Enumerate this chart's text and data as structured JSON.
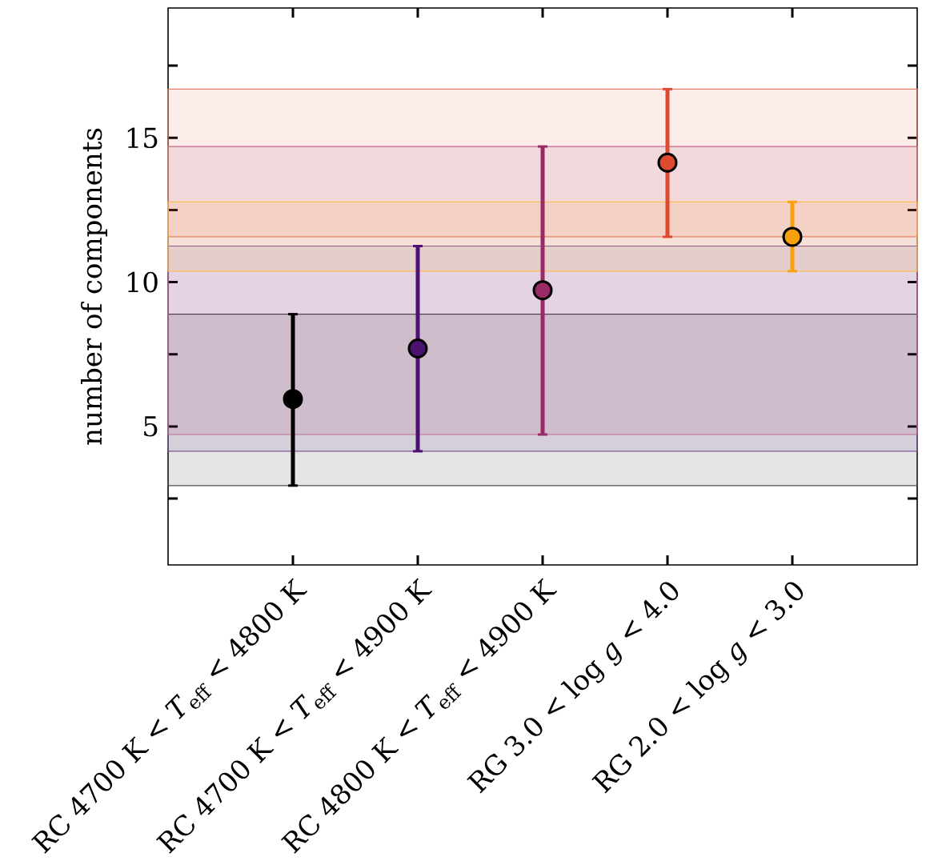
{
  "chart_data": {
    "type": "scatter",
    "ylabel": "number of components",
    "categories": [
      "RC 4700 K < *T*$_{eff}$ < 4800 K",
      "RC 4700 K < *T*$_{eff}$ < 4900 K",
      "RC 4800 K < *T*$_{eff}$ < 4900 K",
      "RG 3.0 < log *g* < 4.0",
      "RG 2.0 < log *g* < 3.0"
    ],
    "values": [
      5.95,
      7.7,
      9.72,
      14.14,
      11.57
    ],
    "colors": [
      "#000000",
      "#4b1272",
      "#992a66",
      "#de4a2f",
      "#f9a10b"
    ],
    "errors": [
      [
        2.95,
        8.89
      ],
      [
        4.14,
        11.25
      ],
      [
        4.72,
        14.7
      ],
      [
        11.57,
        16.69
      ],
      [
        10.38,
        12.78
      ]
    ],
    "ylim": [
      0.2,
      19.5
    ],
    "yticks": [
      {
        "value": 2.5,
        "label": null
      },
      5,
      {
        "value": 7.5,
        "label": null
      },
      10,
      {
        "value": 12.5,
        "label": null
      },
      15,
      {
        "value": 17.5,
        "label": null
      }
    ],
    "marker": "circle",
    "bands": [
      {
        "axis": "y",
        "from": 2.95,
        "to": 8.89,
        "color": "#000000"
      },
      {
        "axis": "y",
        "from": 4.14,
        "to": 11.25,
        "color": "#4b1272"
      },
      {
        "axis": "y",
        "from": 4.72,
        "to": 14.7,
        "color": "#992a66"
      },
      {
        "axis": "y",
        "from": 11.57,
        "to": 16.69,
        "color": "#de4a2f"
      },
      {
        "axis": "y",
        "from": 10.38,
        "to": 12.78,
        "color": "#f9a10b"
      }
    ]
  }
}
